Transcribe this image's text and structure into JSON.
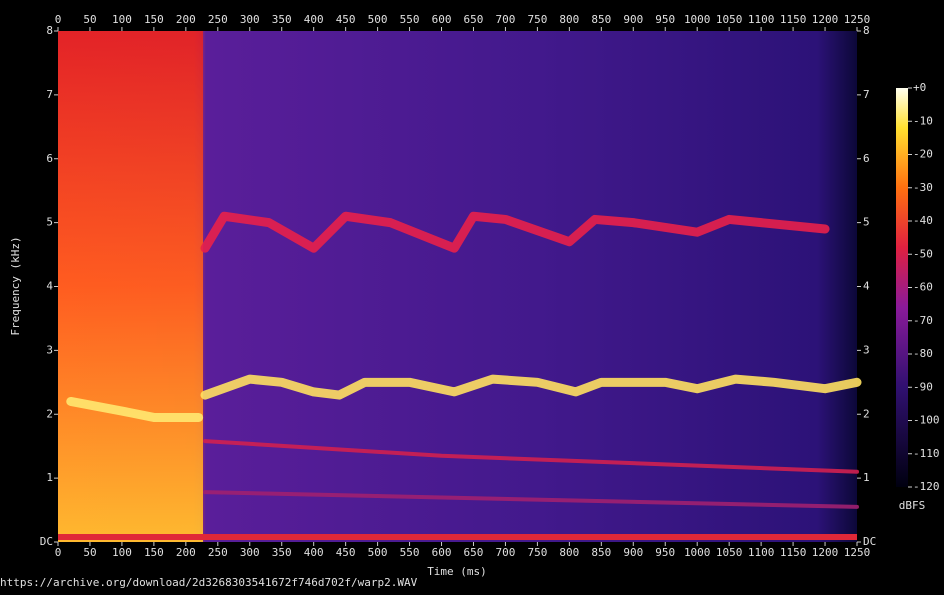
{
  "chart_data": {
    "type": "spectrogram",
    "xlabel": "Time (ms)",
    "ylabel": "Frequency (kHz)",
    "xlim": [
      0,
      1250
    ],
    "xticks": [
      0,
      50,
      100,
      150,
      200,
      250,
      300,
      350,
      400,
      450,
      500,
      550,
      600,
      650,
      700,
      750,
      800,
      850,
      900,
      950,
      1000,
      1050,
      1100,
      1150,
      1200,
      1250
    ],
    "ylim": [
      0,
      8
    ],
    "yticks": [
      {
        "value": 0,
        "label": "DC"
      },
      1,
      2,
      3,
      4,
      5,
      6,
      7,
      8
    ],
    "zlim": [
      -120,
      0
    ],
    "zticks": [
      {
        "value": 0,
        "label": "+0"
      },
      -10,
      -20,
      -30,
      -40,
      -50,
      -60,
      -70,
      -80,
      -90,
      -100,
      -110,
      -120
    ],
    "zlabel": "dBFS",
    "source": "https://archive.org/download/2d3268303541672f746d702f/warp2.WAV",
    "series": [
      {
        "color": "#ffe060",
        "x": [
          230,
          300,
          350,
          400,
          440,
          480,
          550,
          620,
          680,
          750,
          810,
          850,
          950,
          1000,
          1060,
          1120,
          1200,
          1250
        ],
        "values": [
          2.3,
          2.55,
          2.5,
          2.35,
          2.3,
          2.5,
          2.5,
          2.35,
          2.55,
          2.5,
          2.35,
          2.5,
          2.5,
          2.4,
          2.55,
          2.5,
          2.4,
          2.5
        ]
      },
      {
        "color": "#e8204a",
        "x": [
          230,
          260,
          330,
          400,
          450,
          520,
          620,
          650,
          700,
          800,
          840,
          900,
          1000,
          1050,
          1200
        ],
        "values": [
          4.6,
          5.1,
          5.0,
          4.6,
          5.1,
          5.0,
          4.6,
          5.1,
          5.05,
          4.7,
          5.05,
          5.0,
          4.85,
          5.05,
          4.9
        ]
      },
      {
        "color": "#ffe870",
        "x": [
          20,
          100,
          150,
          220
        ],
        "values": [
          2.2,
          2.05,
          1.95,
          1.95
        ]
      },
      {
        "color": "#d02050",
        "x": [
          230,
          600,
          1250
        ],
        "values": [
          1.58,
          1.35,
          1.1
        ]
      },
      {
        "color": "#a02070",
        "x": [
          230,
          1250
        ],
        "values": [
          0.78,
          0.55
        ]
      }
    ]
  }
}
